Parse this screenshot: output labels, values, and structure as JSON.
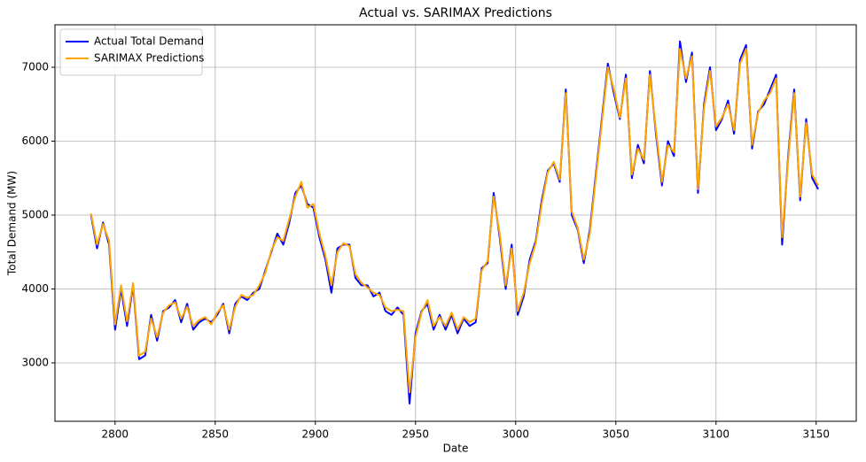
{
  "chart_data": {
    "type": "line",
    "title": "Actual vs. SARIMAX Predictions",
    "x_label": "Date",
    "y_label": "Total Demand (MW)",
    "x": [
      2788,
      2791,
      2794,
      2797,
      2800,
      2803,
      2806,
      2809,
      2812,
      2815,
      2818,
      2821,
      2824,
      2827,
      2830,
      2833,
      2836,
      2839,
      2842,
      2845,
      2848,
      2851,
      2854,
      2857,
      2860,
      2863,
      2866,
      2869,
      2872,
      2875,
      2878,
      2881,
      2884,
      2887,
      2890,
      2893,
      2896,
      2899,
      2902,
      2905,
      2908,
      2911,
      2914,
      2917,
      2920,
      2923,
      2926,
      2929,
      2932,
      2935,
      2938,
      2941,
      2944,
      2947,
      2950,
      2953,
      2956,
      2959,
      2962,
      2965,
      2968,
      2971,
      2974,
      2977,
      2980,
      2983,
      2986,
      2989,
      2992,
      2995,
      2998,
      3001,
      3004,
      3007,
      3010,
      3013,
      3016,
      3019,
      3022,
      3025,
      3028,
      3031,
      3034,
      3037,
      3040,
      3043,
      3046,
      3049,
      3052,
      3055,
      3058,
      3061,
      3064,
      3067,
      3070,
      3073,
      3076,
      3079,
      3082,
      3085,
      3088,
      3091,
      3094,
      3097,
      3100,
      3103,
      3106,
      3109,
      3112,
      3115,
      3118,
      3121,
      3124,
      3127,
      3130,
      3133,
      3136,
      3139,
      3142,
      3145,
      3148,
      3151
    ],
    "series": [
      {
        "name": "Actual Total Demand",
        "color": "#0000ff",
        "values": [
          5000,
          4550,
          4900,
          4600,
          3450,
          4000,
          3500,
          4050,
          3050,
          3100,
          3650,
          3300,
          3700,
          3750,
          3850,
          3550,
          3800,
          3450,
          3550,
          3600,
          3550,
          3650,
          3800,
          3400,
          3800,
          3900,
          3850,
          3950,
          4000,
          4250,
          4500,
          4750,
          4600,
          4900,
          5300,
          5400,
          5150,
          5100,
          4700,
          4400,
          3950,
          4550,
          4600,
          4600,
          4150,
          4050,
          4050,
          3900,
          3950,
          3700,
          3650,
          3750,
          3650,
          2450,
          3400,
          3700,
          3800,
          3450,
          3650,
          3450,
          3650,
          3400,
          3600,
          3500,
          3550,
          4280,
          4350,
          5300,
          4700,
          4000,
          4600,
          3650,
          3900,
          4400,
          4650,
          5200,
          5600,
          5700,
          5450,
          6700,
          5000,
          4800,
          4350,
          4800,
          5550,
          6300,
          7050,
          6650,
          6300,
          6900,
          5500,
          5950,
          5700,
          6950,
          6100,
          5400,
          6000,
          5800,
          7350,
          6800,
          7200,
          5300,
          6500,
          7000,
          6150,
          6300,
          6550,
          6100,
          7100,
          7300,
          5900,
          6400,
          6500,
          6700,
          6900,
          4600,
          5800,
          6700,
          5200,
          6300,
          5500,
          5350
        ]
      },
      {
        "name": "SARIMAX Predictions",
        "color": "#ffa500",
        "values": [
          5020,
          4600,
          4880,
          4650,
          3520,
          4050,
          3560,
          4080,
          3100,
          3150,
          3600,
          3350,
          3680,
          3780,
          3820,
          3600,
          3760,
          3500,
          3580,
          3620,
          3520,
          3680,
          3780,
          3450,
          3760,
          3920,
          3880,
          3920,
          4050,
          4220,
          4520,
          4700,
          4650,
          4950,
          5250,
          5450,
          5100,
          5150,
          4750,
          4450,
          4050,
          4500,
          4620,
          4580,
          4200,
          4080,
          4020,
          3950,
          3920,
          3750,
          3700,
          3720,
          3700,
          2600,
          3350,
          3680,
          3850,
          3500,
          3620,
          3500,
          3680,
          3450,
          3620,
          3550,
          3600,
          4250,
          4380,
          5250,
          4750,
          4050,
          4550,
          3700,
          3950,
          4350,
          4620,
          5150,
          5580,
          5720,
          5480,
          6650,
          5050,
          4820,
          4400,
          4750,
          5500,
          6250,
          7000,
          6700,
          6320,
          6850,
          5550,
          5900,
          5750,
          6900,
          6150,
          5450,
          5950,
          5850,
          7250,
          6850,
          7150,
          5350,
          6450,
          6950,
          6200,
          6320,
          6500,
          6150,
          7050,
          7250,
          5950,
          6380,
          6550,
          6650,
          6850,
          4700,
          5750,
          6650,
          5250,
          6250,
          5550,
          5400
        ]
      }
    ],
    "xlim": [
      2770,
      3170
    ],
    "ylim": [
      2210,
      7575
    ],
    "xticks": [
      2800,
      2850,
      2900,
      2950,
      3000,
      3050,
      3100,
      3150
    ],
    "yticks": [
      3000,
      4000,
      5000,
      6000,
      7000
    ],
    "grid": true,
    "legend": "upper left"
  }
}
